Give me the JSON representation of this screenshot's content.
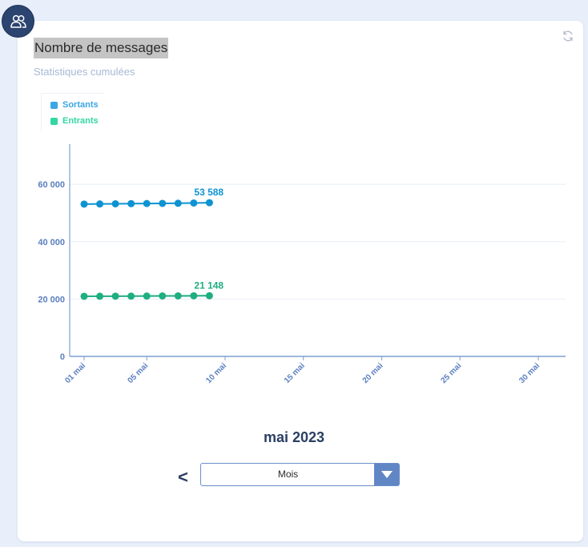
{
  "header": {
    "title": "Nombre de messages",
    "subtitle": "Statistiques cumulées"
  },
  "icons": {
    "avatar": "users-icon",
    "refresh": "refresh-icon",
    "dropdown": "caret-down-icon"
  },
  "colors": {
    "sortants": "#0e93d2",
    "entrants": "#1fae80",
    "legend_sortants": "#3aa6e3",
    "legend_entrants": "#33d6a3",
    "axis": "#7f9fd1",
    "tick_label": "#5a7fc0",
    "grid": "#e8eef7"
  },
  "chart_data": {
    "type": "line",
    "x_tick_labels": [
      "01 mai",
      "05 mai",
      "10 mai",
      "15 mai",
      "20 mai",
      "25 mai",
      "30 mai"
    ],
    "x_tick_days": [
      1,
      5,
      10,
      15,
      20,
      25,
      30
    ],
    "y_ticks": [
      0,
      20000,
      40000,
      60000
    ],
    "y_tick_labels": [
      "0",
      "20 000",
      "40 000",
      "60 000"
    ],
    "x_range": [
      1,
      31
    ],
    "ylim": [
      0,
      74000
    ],
    "grid": true,
    "legend_position": "top-left",
    "series": [
      {
        "name": "Sortants",
        "x": [
          1,
          2,
          3,
          4,
          5,
          6,
          7,
          8,
          9
        ],
        "values": [
          53100,
          53150,
          53200,
          53250,
          53300,
          53350,
          53400,
          53480,
          53588
        ],
        "last_label": "53 588"
      },
      {
        "name": "Entrants",
        "x": [
          1,
          2,
          3,
          4,
          5,
          6,
          7,
          8,
          9
        ],
        "values": [
          20950,
          20970,
          20990,
          21010,
          21040,
          21070,
          21090,
          21120,
          21148
        ],
        "last_label": "21 148"
      }
    ]
  },
  "footer": {
    "period_label": "mai 2023",
    "prev_label": "<",
    "select_value": "Mois"
  }
}
